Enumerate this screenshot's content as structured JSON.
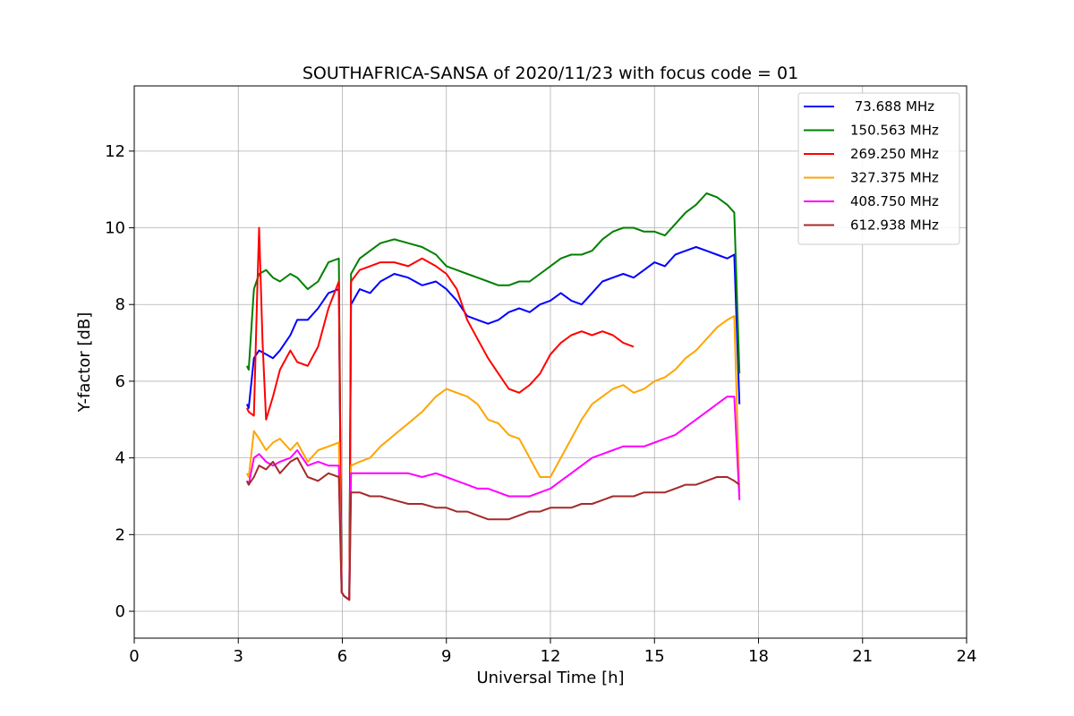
{
  "chart_data": {
    "type": "line",
    "title": "SOUTHAFRICA-SANSA of 2020/11/23 with focus code = 01",
    "xlabel": "Universal Time [h]",
    "ylabel": "Y-factor [dB]",
    "xlim": [
      0,
      24
    ],
    "ylim": [
      -0.7,
      13.7
    ],
    "xticks": [
      0,
      3,
      6,
      9,
      12,
      15,
      18,
      21,
      24
    ],
    "yticks": [
      0,
      2,
      4,
      6,
      8,
      10,
      12
    ],
    "grid": true,
    "legend_position": "top-right",
    "series": [
      {
        "name": " 73.688 MHz",
        "color": "#0000ff",
        "x": [
          3.25,
          3.3,
          3.45,
          3.6,
          3.8,
          4.0,
          4.2,
          4.5,
          4.7,
          5.0,
          5.3,
          5.6,
          5.9,
          5.98,
          6.05,
          6.2,
          6.25,
          6.5,
          6.8,
          7.1,
          7.5,
          7.9,
          8.3,
          8.7,
          9.0,
          9.3,
          9.6,
          9.9,
          10.2,
          10.5,
          10.8,
          11.1,
          11.4,
          11.7,
          12.0,
          12.3,
          12.6,
          12.9,
          13.2,
          13.5,
          13.8,
          14.1,
          14.4,
          14.7,
          15.0,
          15.3,
          15.6,
          15.9,
          16.2,
          16.5,
          16.8,
          17.1,
          17.3,
          17.45
        ],
        "y": [
          5.4,
          5.3,
          6.6,
          6.8,
          6.7,
          6.6,
          6.8,
          7.2,
          7.6,
          7.6,
          7.9,
          8.3,
          8.4,
          0.5,
          0.4,
          0.3,
          8.0,
          8.4,
          8.3,
          8.6,
          8.8,
          8.7,
          8.5,
          8.6,
          8.4,
          8.1,
          7.7,
          7.6,
          7.5,
          7.6,
          7.8,
          7.9,
          7.8,
          8.0,
          8.1,
          8.3,
          8.1,
          8.0,
          8.3,
          8.6,
          8.7,
          8.8,
          8.7,
          8.9,
          9.1,
          9.0,
          9.3,
          9.4,
          9.5,
          9.4,
          9.3,
          9.2,
          9.3,
          5.4
        ]
      },
      {
        "name": "150.563 MHz",
        "color": "#008000",
        "x": [
          3.25,
          3.3,
          3.45,
          3.6,
          3.8,
          4.0,
          4.2,
          4.5,
          4.7,
          5.0,
          5.3,
          5.6,
          5.9,
          5.98,
          6.05,
          6.2,
          6.25,
          6.5,
          6.8,
          7.1,
          7.5,
          7.9,
          8.3,
          8.7,
          9.0,
          9.3,
          9.6,
          9.9,
          10.2,
          10.5,
          10.8,
          11.1,
          11.4,
          11.7,
          12.0,
          12.3,
          12.6,
          12.9,
          13.2,
          13.5,
          13.8,
          14.1,
          14.4,
          14.7,
          15.0,
          15.3,
          15.6,
          15.9,
          16.2,
          16.5,
          16.8,
          17.1,
          17.3,
          17.45
        ],
        "y": [
          6.4,
          6.3,
          8.4,
          8.8,
          8.9,
          8.7,
          8.6,
          8.8,
          8.7,
          8.4,
          8.6,
          9.1,
          9.2,
          0.5,
          0.4,
          0.3,
          8.8,
          9.2,
          9.4,
          9.6,
          9.7,
          9.6,
          9.5,
          9.3,
          9.0,
          8.9,
          8.8,
          8.7,
          8.6,
          8.5,
          8.5,
          8.6,
          8.6,
          8.8,
          9.0,
          9.2,
          9.3,
          9.3,
          9.4,
          9.7,
          9.9,
          10.0,
          10.0,
          9.9,
          9.9,
          9.8,
          10.1,
          10.4,
          10.6,
          10.9,
          10.8,
          10.6,
          10.4,
          6.2
        ]
      },
      {
        "name": "269.250 MHz",
        "color": "#ff0000",
        "x": [
          3.25,
          3.3,
          3.45,
          3.55,
          3.6,
          3.7,
          3.8,
          4.0,
          4.2,
          4.5,
          4.7,
          5.0,
          5.3,
          5.6,
          5.9,
          5.98,
          6.05,
          6.2,
          6.25,
          6.5,
          6.8,
          7.1,
          7.5,
          7.9,
          8.3,
          8.7,
          9.0,
          9.3,
          9.6,
          9.9,
          10.2,
          10.5,
          10.8,
          11.1,
          11.4,
          11.7,
          12.0,
          12.3,
          12.6,
          12.9,
          13.2,
          13.5,
          13.8,
          14.1,
          14.4
        ],
        "y": [
          5.3,
          5.2,
          5.1,
          8.5,
          10.0,
          7.0,
          5.0,
          5.6,
          6.3,
          6.8,
          6.5,
          6.4,
          6.9,
          7.9,
          8.6,
          0.5,
          0.4,
          0.3,
          8.6,
          8.9,
          9.0,
          9.1,
          9.1,
          9.0,
          9.2,
          9.0,
          8.8,
          8.4,
          7.6,
          7.1,
          6.6,
          6.2,
          5.8,
          5.7,
          5.9,
          6.2,
          6.7,
          7.0,
          7.2,
          7.3,
          7.2,
          7.3,
          7.2,
          7.0,
          6.9
        ]
      },
      {
        "name": "327.375 MHz",
        "color": "#ffa500",
        "x": [
          3.25,
          3.3,
          3.45,
          3.6,
          3.8,
          4.0,
          4.2,
          4.5,
          4.7,
          5.0,
          5.3,
          5.6,
          5.9,
          5.98,
          6.05,
          6.2,
          6.25,
          6.5,
          6.8,
          7.1,
          7.5,
          7.9,
          8.3,
          8.7,
          9.0,
          9.3,
          9.6,
          9.9,
          10.2,
          10.5,
          10.8,
          11.1,
          11.4,
          11.7,
          12.0,
          12.3,
          12.6,
          12.9,
          13.2,
          13.5,
          13.8,
          14.1,
          14.4,
          14.7,
          15.0,
          15.3,
          15.6,
          15.9,
          16.2,
          16.5,
          16.8,
          17.1,
          17.3,
          17.45
        ],
        "y": [
          3.6,
          3.5,
          4.7,
          4.5,
          4.2,
          4.4,
          4.5,
          4.2,
          4.4,
          3.9,
          4.2,
          4.3,
          4.4,
          0.5,
          0.4,
          0.3,
          3.8,
          3.9,
          4.0,
          4.3,
          4.6,
          4.9,
          5.2,
          5.6,
          5.8,
          5.7,
          5.6,
          5.4,
          5.0,
          4.9,
          4.6,
          4.5,
          4.0,
          3.5,
          3.5,
          4.0,
          4.5,
          5.0,
          5.4,
          5.6,
          5.8,
          5.9,
          5.7,
          5.8,
          6.0,
          6.1,
          6.3,
          6.6,
          6.8,
          7.1,
          7.4,
          7.6,
          7.7,
          3.1
        ]
      },
      {
        "name": "408.750 MHz",
        "color": "#ff00ff",
        "x": [
          3.25,
          3.3,
          3.45,
          3.6,
          3.8,
          4.0,
          4.2,
          4.5,
          4.7,
          5.0,
          5.3,
          5.6,
          5.9,
          5.98,
          6.05,
          6.2,
          6.25,
          6.5,
          6.8,
          7.1,
          7.5,
          7.9,
          8.3,
          8.7,
          9.0,
          9.3,
          9.6,
          9.9,
          10.2,
          10.5,
          10.8,
          11.1,
          11.4,
          11.7,
          12.0,
          12.3,
          12.6,
          12.9,
          13.2,
          13.5,
          13.8,
          14.1,
          14.4,
          14.7,
          15.0,
          15.3,
          15.6,
          15.9,
          16.2,
          16.5,
          16.8,
          17.1,
          17.3,
          17.45
        ],
        "y": [
          3.4,
          3.3,
          4.0,
          4.1,
          3.9,
          3.8,
          3.9,
          4.0,
          4.2,
          3.8,
          3.9,
          3.8,
          3.8,
          0.5,
          0.4,
          0.3,
          3.6,
          3.6,
          3.6,
          3.6,
          3.6,
          3.6,
          3.5,
          3.6,
          3.5,
          3.4,
          3.3,
          3.2,
          3.2,
          3.1,
          3.0,
          3.0,
          3.0,
          3.1,
          3.2,
          3.4,
          3.6,
          3.8,
          4.0,
          4.1,
          4.2,
          4.3,
          4.3,
          4.3,
          4.4,
          4.5,
          4.6,
          4.8,
          5.0,
          5.2,
          5.4,
          5.6,
          5.6,
          2.9
        ]
      },
      {
        "name": "612.938 MHz",
        "color": "#a52a2a",
        "x": [
          3.25,
          3.3,
          3.45,
          3.6,
          3.8,
          4.0,
          4.2,
          4.5,
          4.7,
          5.0,
          5.3,
          5.6,
          5.9,
          5.98,
          6.05,
          6.2,
          6.25,
          6.5,
          6.8,
          7.1,
          7.5,
          7.9,
          8.3,
          8.7,
          9.0,
          9.3,
          9.6,
          9.9,
          10.2,
          10.5,
          10.8,
          11.1,
          11.4,
          11.7,
          12.0,
          12.3,
          12.6,
          12.9,
          13.2,
          13.5,
          13.8,
          14.1,
          14.4,
          14.7,
          15.0,
          15.3,
          15.6,
          15.9,
          16.2,
          16.5,
          16.8,
          17.1,
          17.3,
          17.45
        ],
        "y": [
          3.4,
          3.3,
          3.5,
          3.8,
          3.7,
          3.9,
          3.6,
          3.9,
          4.0,
          3.5,
          3.4,
          3.6,
          3.5,
          0.5,
          0.4,
          0.3,
          3.1,
          3.1,
          3.0,
          3.0,
          2.9,
          2.8,
          2.8,
          2.7,
          2.7,
          2.6,
          2.6,
          2.5,
          2.4,
          2.4,
          2.4,
          2.5,
          2.6,
          2.6,
          2.7,
          2.7,
          2.7,
          2.8,
          2.8,
          2.9,
          3.0,
          3.0,
          3.0,
          3.1,
          3.1,
          3.1,
          3.2,
          3.3,
          3.3,
          3.4,
          3.5,
          3.5,
          3.4,
          3.3
        ]
      }
    ]
  }
}
